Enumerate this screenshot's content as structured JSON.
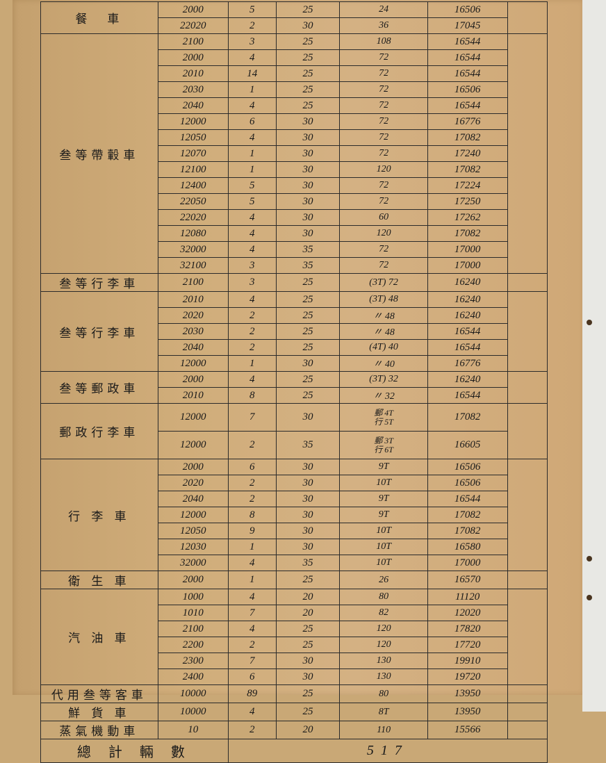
{
  "colors": {
    "paper": "#d0ad7a",
    "ink": "#1a1a1a",
    "border": "#2a2a2a",
    "edge": "#e8e8e4"
  },
  "table": {
    "columns_count": 7,
    "total_label": "總 計 輛 數",
    "total_value": "517",
    "groups": [
      {
        "cat": "餐　車",
        "rows": [
          [
            "2000",
            "5",
            "25",
            "24",
            "16506"
          ],
          [
            "22020",
            "2",
            "30",
            "36",
            "17045"
          ]
        ]
      },
      {
        "cat": "叁等帶轂車",
        "rows": [
          [
            "2100",
            "3",
            "25",
            "108",
            "16544"
          ],
          [
            "2000",
            "4",
            "25",
            "72",
            "16544"
          ],
          [
            "2010",
            "14",
            "25",
            "72",
            "16544"
          ],
          [
            "2030",
            "1",
            "25",
            "72",
            "16506"
          ],
          [
            "2040",
            "4",
            "25",
            "72",
            "16544"
          ],
          [
            "12000",
            "6",
            "30",
            "72",
            "16776"
          ],
          [
            "12050",
            "4",
            "30",
            "72",
            "17082"
          ],
          [
            "12070",
            "1",
            "30",
            "72",
            "17240"
          ],
          [
            "12100",
            "1",
            "30",
            "120",
            "17082"
          ],
          [
            "12400",
            "5",
            "30",
            "72",
            "17224"
          ],
          [
            "22050",
            "5",
            "30",
            "72",
            "17250"
          ],
          [
            "22020",
            "4",
            "30",
            "60",
            "17262"
          ],
          [
            "12080",
            "4",
            "30",
            "120",
            "17082"
          ],
          [
            "32000",
            "4",
            "35",
            "72",
            "17000"
          ],
          [
            "32100",
            "3",
            "35",
            "72",
            "17000"
          ]
        ]
      },
      {
        "cat": "叁等行李車",
        "rows": [
          [
            "2100",
            "3",
            "25",
            "(3T) 72",
            "16240"
          ]
        ]
      },
      {
        "cat": "叁等行李車",
        "rows": [
          [
            "2010",
            "4",
            "25",
            "(3T) 48",
            "16240"
          ],
          [
            "2020",
            "2",
            "25",
            "〃 48",
            "16240"
          ],
          [
            "2030",
            "2",
            "25",
            "〃 48",
            "16544"
          ],
          [
            "2040",
            "2",
            "25",
            "(4T) 40",
            "16544"
          ],
          [
            "12000",
            "1",
            "30",
            "〃 40",
            "16776"
          ]
        ]
      },
      {
        "cat": "叁等郵政車",
        "rows": [
          [
            "2000",
            "4",
            "25",
            "(3T) 32",
            "16240"
          ],
          [
            "2010",
            "8",
            "25",
            "〃 32",
            "16544"
          ]
        ]
      },
      {
        "cat": "郵政行李車",
        "rows": [
          [
            "12000",
            "7",
            "30",
            "郵 4T\n行 5T",
            "17082"
          ],
          [
            "12000",
            "2",
            "35",
            "郵 3T\n行 6T",
            "16605"
          ]
        ],
        "tall": true
      },
      {
        "cat": "行 李 車",
        "rows": [
          [
            "2000",
            "6",
            "30",
            "9T",
            "16506"
          ],
          [
            "2020",
            "2",
            "30",
            "10T",
            "16506"
          ],
          [
            "2040",
            "2",
            "30",
            "9T",
            "16544"
          ],
          [
            "12000",
            "8",
            "30",
            "9T",
            "17082"
          ],
          [
            "12050",
            "9",
            "30",
            "10T",
            "17082"
          ],
          [
            "12030",
            "1",
            "30",
            "10T",
            "16580"
          ],
          [
            "32000",
            "4",
            "35",
            "10T",
            "17000"
          ]
        ]
      },
      {
        "cat": "衛 生 車",
        "rows": [
          [
            "2000",
            "1",
            "25",
            "26",
            "16570"
          ]
        ]
      },
      {
        "cat": "汽 油 車",
        "rows": [
          [
            "1000",
            "4",
            "20",
            "80",
            "11120"
          ],
          [
            "1010",
            "7",
            "20",
            "82",
            "12020"
          ],
          [
            "2100",
            "4",
            "25",
            "120",
            "17820"
          ],
          [
            "2200",
            "2",
            "25",
            "120",
            "17720"
          ],
          [
            "2300",
            "7",
            "30",
            "130",
            "19910"
          ],
          [
            "2400",
            "6",
            "30",
            "130",
            "19720"
          ]
        ]
      },
      {
        "cat": "代用叁等客車",
        "rows": [
          [
            "10000",
            "89",
            "25",
            "80",
            "13950"
          ]
        ]
      },
      {
        "cat": "鮮 貨 車",
        "rows": [
          [
            "10000",
            "4",
            "25",
            "8T",
            "13950"
          ]
        ]
      },
      {
        "cat": "蒸氣機動車",
        "rows": [
          [
            "10",
            "2",
            "20",
            "110",
            "15566"
          ]
        ]
      }
    ]
  }
}
